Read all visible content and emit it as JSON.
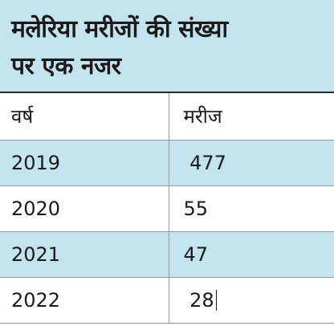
{
  "title": {
    "line1": "मलेरिया मरीजों की संख्या",
    "line2": "पर एक नजर"
  },
  "table": {
    "headers": {
      "year": "वर्ष",
      "patients": "मरीज"
    },
    "rows": [
      {
        "year": "2019",
        "patients": "477"
      },
      {
        "year": "2020",
        "patients": "55"
      },
      {
        "year": "2021",
        "patients": "47"
      },
      {
        "year": "2022",
        "patients": "28"
      }
    ]
  },
  "colors": {
    "accent_band": "#c3e3ef",
    "text": "#1a1a1a",
    "rule": "#9a9a9a"
  }
}
